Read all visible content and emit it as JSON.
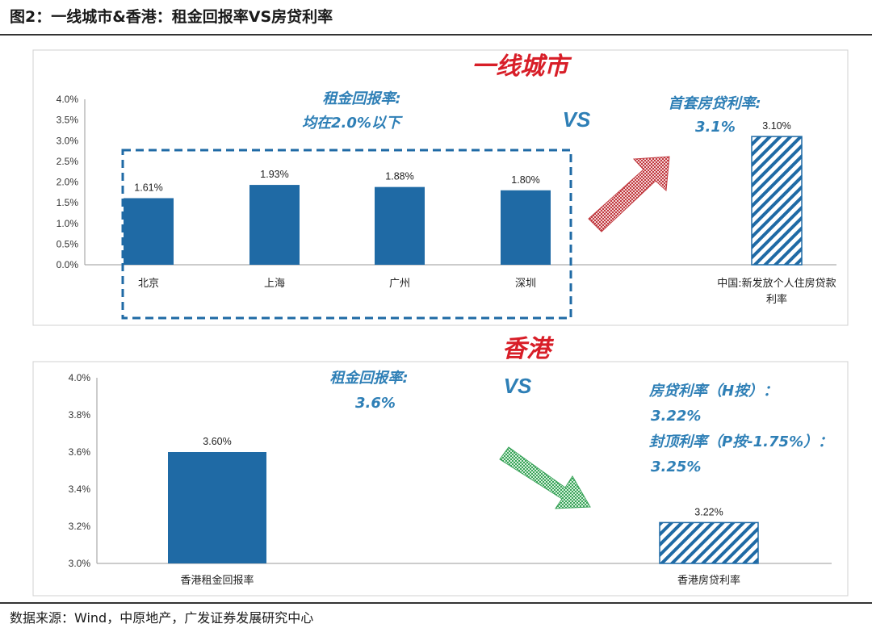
{
  "figure": {
    "title": "图2：一线城市&香港：租金回报率VS房贷利率",
    "source": "数据来源：Wind，中原地产，广发证券发展研究中心"
  },
  "annotations": {
    "tier1_heading": "一线城市",
    "hk_heading": "香港",
    "vs": "VS",
    "tier1_rent_line1": "租金回报率:",
    "tier1_rent_line2": "均在2.0%以下",
    "tier1_mortgage_line1": "首套房贷利率:",
    "tier1_mortgage_line2": "3.1%",
    "hk_rent_line1": "租金回报率:",
    "hk_rent_line2": "3.6%",
    "hk_mortgage_line1": "房贷利率（H按）：",
    "hk_mortgage_line2": "3.22%",
    "hk_mortgage_line3": "封顶利率（P按-1.75%）：",
    "hk_mortgage_line4": "3.25%"
  },
  "colors": {
    "bar": "#1f6aa5",
    "annotation": "#2e7fb6",
    "heading": "#d81e28",
    "arrow_up": "#c0393f",
    "arrow_down": "#3aa35a"
  },
  "chart_data": [
    {
      "type": "bar",
      "name": "tier1",
      "yticks": [
        "4.0%",
        "3.5%",
        "3.0%",
        "2.5%",
        "2.0%",
        "1.5%",
        "1.0%",
        "0.5%",
        "0.0%"
      ],
      "ylim": [
        0,
        4.0
      ],
      "categories": [
        "北京",
        "上海",
        "广州",
        "深圳",
        "中国:新发放个人住房贷款利率"
      ],
      "category_lines": [
        [
          "北京"
        ],
        [
          "上海"
        ],
        [
          "广州"
        ],
        [
          "深圳"
        ],
        [
          "中国:新发放个人住房贷款",
          "利率"
        ]
      ],
      "values": [
        1.61,
        1.93,
        1.88,
        1.8,
        3.1
      ],
      "labels": [
        "1.61%",
        "1.93%",
        "1.88%",
        "1.80%",
        "3.10%"
      ],
      "styles": [
        "solid",
        "solid",
        "solid",
        "solid",
        "hatched"
      ]
    },
    {
      "type": "bar",
      "name": "hongkong",
      "yticks": [
        "4.0%",
        "3.8%",
        "3.6%",
        "3.4%",
        "3.2%",
        "3.0%"
      ],
      "ylim": [
        3.0,
        4.0
      ],
      "categories": [
        "香港租金回报率",
        "香港房贷利率"
      ],
      "category_lines": [
        [
          "香港租金回报率"
        ],
        [
          "香港房贷利率"
        ]
      ],
      "values": [
        3.6,
        3.22
      ],
      "labels": [
        "3.60%",
        "3.22%"
      ],
      "styles": [
        "solid",
        "hatched"
      ]
    }
  ]
}
